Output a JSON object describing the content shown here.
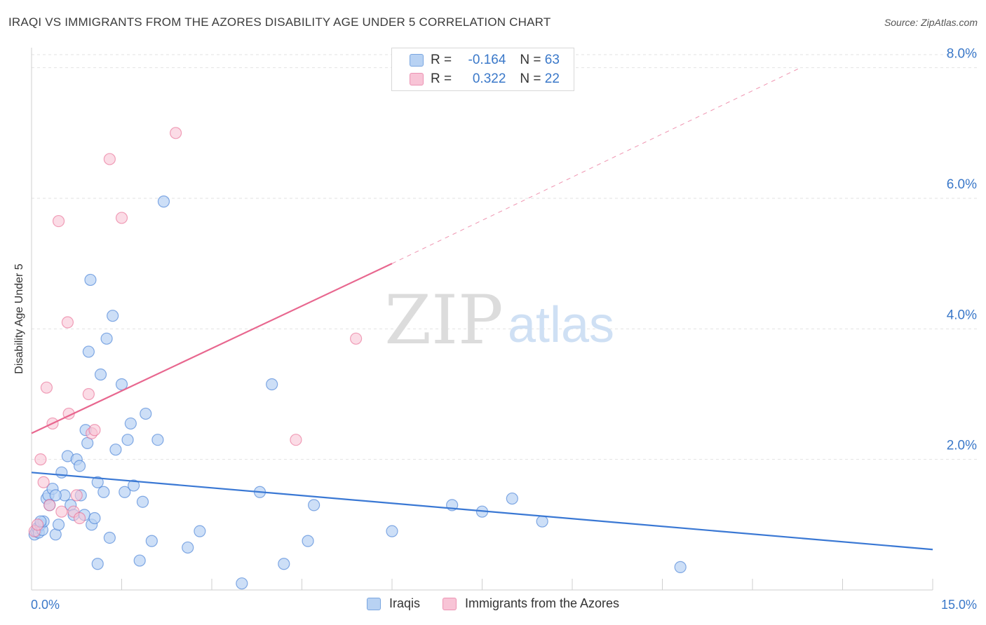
{
  "title": "IRAQI VS IMMIGRANTS FROM THE AZORES DISABILITY AGE UNDER 5 CORRELATION CHART",
  "source": "Source: ZipAtlas.com",
  "watermark": {
    "zip": "ZIP",
    "atlas": "atlas"
  },
  "colors": {
    "blue": "#3a78d4",
    "blue_fill": "#b8d2f3",
    "pink": "#e8678f",
    "pink_fill": "#f8c4d6",
    "axis_text": "#3a78c9"
  },
  "legend": {
    "r_label": "R =",
    "n_label": "N =",
    "series1": {
      "r": "-0.164",
      "n": "63"
    },
    "series2": {
      "r": "0.322",
      "n": "22"
    }
  },
  "bottom_legend": {
    "series1": "Iraqis",
    "series2": "Immigrants from the Azores"
  },
  "chart_data": {
    "type": "scatter",
    "title": "IRAQI VS IMMIGRANTS FROM THE AZORES DISABILITY AGE UNDER 5 CORRELATION CHART",
    "xlabel": "",
    "ylabel": "Disability Age Under 5",
    "xlim": [
      0,
      15
    ],
    "ylim": [
      0,
      8.2
    ],
    "x_tick_labels": {
      "left": "0.0%",
      "right": "15.0%"
    },
    "y_ticks": [
      {
        "value": 2,
        "label": "2.0%"
      },
      {
        "value": 4,
        "label": "4.0%"
      },
      {
        "value": 6,
        "label": "6.0%"
      },
      {
        "value": 8,
        "label": "8.0%"
      }
    ],
    "series": [
      {
        "name": "Iraqis",
        "color": "#3a78d4",
        "trend": {
          "x0": 0,
          "y0": 1.8,
          "x1": 15,
          "y1": 0.62
        },
        "points": [
          [
            0.05,
            0.85
          ],
          [
            0.08,
            0.9
          ],
          [
            0.1,
            0.95
          ],
          [
            0.12,
            0.88
          ],
          [
            0.15,
            1.0
          ],
          [
            0.18,
            0.92
          ],
          [
            0.2,
            1.05
          ],
          [
            0.25,
            1.4
          ],
          [
            0.28,
            1.45
          ],
          [
            0.3,
            1.3
          ],
          [
            0.35,
            1.55
          ],
          [
            0.4,
            0.85
          ],
          [
            0.45,
            1.0
          ],
          [
            0.5,
            1.8
          ],
          [
            0.55,
            1.45
          ],
          [
            0.6,
            2.05
          ],
          [
            0.65,
            1.3
          ],
          [
            0.7,
            1.15
          ],
          [
            0.75,
            2.0
          ],
          [
            0.8,
            1.9
          ],
          [
            0.82,
            1.45
          ],
          [
            0.88,
            1.15
          ],
          [
            0.9,
            2.45
          ],
          [
            0.93,
            2.25
          ],
          [
            0.95,
            3.65
          ],
          [
            0.98,
            4.75
          ],
          [
            1.0,
            1.0
          ],
          [
            1.05,
            1.1
          ],
          [
            1.1,
            1.65
          ],
          [
            1.15,
            3.3
          ],
          [
            1.2,
            1.5
          ],
          [
            1.25,
            3.85
          ],
          [
            1.3,
            0.8
          ],
          [
            1.35,
            4.2
          ],
          [
            1.4,
            2.15
          ],
          [
            1.5,
            3.15
          ],
          [
            1.55,
            1.5
          ],
          [
            1.6,
            2.3
          ],
          [
            1.65,
            2.55
          ],
          [
            1.7,
            1.6
          ],
          [
            1.8,
            0.45
          ],
          [
            1.85,
            1.35
          ],
          [
            1.9,
            2.7
          ],
          [
            2.0,
            0.75
          ],
          [
            2.1,
            2.3
          ],
          [
            2.2,
            5.95
          ],
          [
            2.6,
            0.65
          ],
          [
            2.8,
            0.9
          ],
          [
            3.5,
            0.1
          ],
          [
            3.8,
            1.5
          ],
          [
            4.0,
            3.15
          ],
          [
            4.2,
            0.4
          ],
          [
            4.6,
            0.75
          ],
          [
            4.7,
            1.3
          ],
          [
            6.0,
            0.9
          ],
          [
            7.0,
            1.3
          ],
          [
            7.5,
            1.2
          ],
          [
            8.0,
            1.4
          ],
          [
            8.5,
            1.05
          ],
          [
            10.8,
            0.35
          ],
          [
            1.1,
            0.4
          ],
          [
            0.4,
            1.45
          ],
          [
            0.15,
            1.05
          ]
        ]
      },
      {
        "name": "Immigrants from the Azores",
        "color": "#e8678f",
        "trend": {
          "x0": 0,
          "y0": 2.4,
          "x1": 6.0,
          "y1": 5.0,
          "dashed_x1": 12.8,
          "dashed_y1": 8.0
        },
        "points": [
          [
            0.05,
            0.9
          ],
          [
            0.1,
            1.0
          ],
          [
            0.15,
            2.0
          ],
          [
            0.2,
            1.65
          ],
          [
            0.25,
            3.1
          ],
          [
            0.3,
            1.3
          ],
          [
            0.35,
            2.55
          ],
          [
            0.45,
            5.65
          ],
          [
            0.5,
            1.2
          ],
          [
            0.6,
            4.1
          ],
          [
            0.62,
            2.7
          ],
          [
            0.7,
            1.2
          ],
          [
            0.75,
            1.45
          ],
          [
            0.8,
            1.1
          ],
          [
            0.95,
            3.0
          ],
          [
            1.0,
            2.4
          ],
          [
            1.05,
            2.45
          ],
          [
            1.3,
            6.6
          ],
          [
            1.5,
            5.7
          ],
          [
            2.4,
            7.0
          ],
          [
            4.4,
            2.3
          ],
          [
            5.4,
            3.85
          ]
        ]
      }
    ]
  }
}
